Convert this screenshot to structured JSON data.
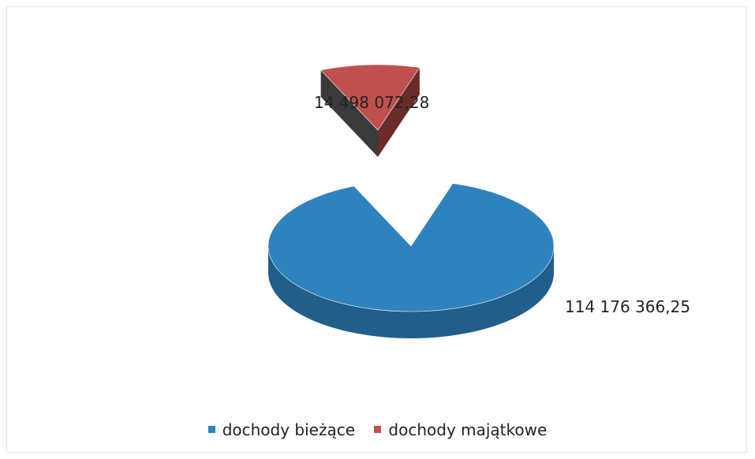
{
  "chart_data": {
    "type": "pie",
    "title": "",
    "legend_position": "bottom",
    "categories": [
      "dochody bieżące",
      "dochody majątkowe"
    ],
    "values": [
      114176366.25,
      14498072.28
    ],
    "data_labels": [
      "114 176 366,25",
      "14 498 072,28"
    ],
    "colors": [
      "#2e83be",
      "#c0504d"
    ]
  }
}
